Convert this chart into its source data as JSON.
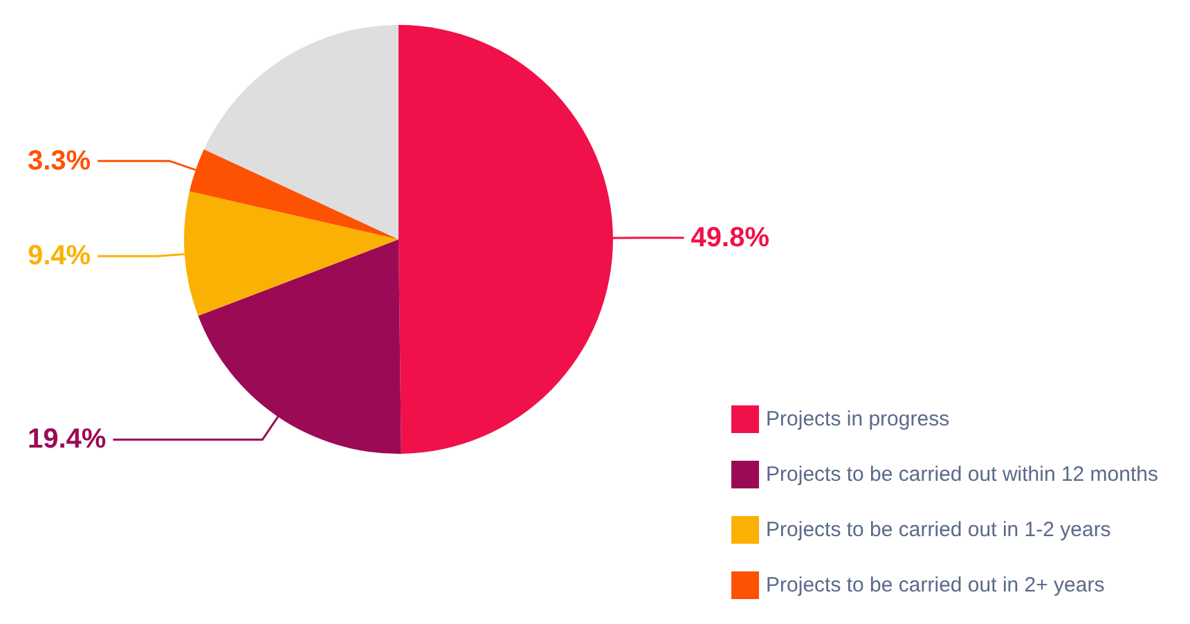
{
  "chart_data": {
    "type": "pie",
    "categories": [
      "Projects in progress",
      "Projects to be carried out within 12 months",
      "Projects to be carried out in 1-2 years",
      "Projects to be carried out in 2+ years",
      null
    ],
    "values": [
      49.8,
      19.4,
      9.4,
      3.3,
      18.1
    ],
    "colors": [
      "#f0114a",
      "#9b0a55",
      "#fbb103",
      "#fd5202",
      "#dedede"
    ],
    "value_labels": [
      "49.8%",
      "19.4%",
      "9.4%",
      "3.3%",
      null
    ],
    "legend": "bottom right"
  }
}
